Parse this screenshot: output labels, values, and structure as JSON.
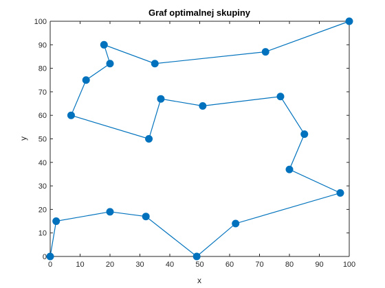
{
  "chart_data": {
    "type": "line",
    "title": "Graf optimalnej skupiny",
    "xlabel": "x",
    "ylabel": "y",
    "xlim": [
      0,
      100
    ],
    "ylim": [
      0,
      100
    ],
    "xticks": [
      0,
      10,
      20,
      30,
      40,
      50,
      60,
      70,
      80,
      90,
      100
    ],
    "yticks": [
      0,
      10,
      20,
      30,
      40,
      50,
      60,
      70,
      80,
      90,
      100
    ],
    "grid": false,
    "series": [
      {
        "color": "#0072BD",
        "marker": "circle",
        "points": [
          {
            "x": 100,
            "y": 100
          },
          {
            "x": 72,
            "y": 87
          },
          {
            "x": 35,
            "y": 82
          },
          {
            "x": 18,
            "y": 90
          },
          {
            "x": 20,
            "y": 82
          },
          {
            "x": 12,
            "y": 75
          },
          {
            "x": 7,
            "y": 60
          },
          {
            "x": 33,
            "y": 50
          },
          {
            "x": 37,
            "y": 67
          },
          {
            "x": 51,
            "y": 64
          },
          {
            "x": 77,
            "y": 68
          },
          {
            "x": 85,
            "y": 52
          },
          {
            "x": 80,
            "y": 37
          },
          {
            "x": 97,
            "y": 27
          },
          {
            "x": 62,
            "y": 14
          },
          {
            "x": 49,
            "y": 0
          },
          {
            "x": 32,
            "y": 17
          },
          {
            "x": 20,
            "y": 19
          },
          {
            "x": 2,
            "y": 15
          },
          {
            "x": 0,
            "y": 0
          }
        ]
      }
    ]
  }
}
